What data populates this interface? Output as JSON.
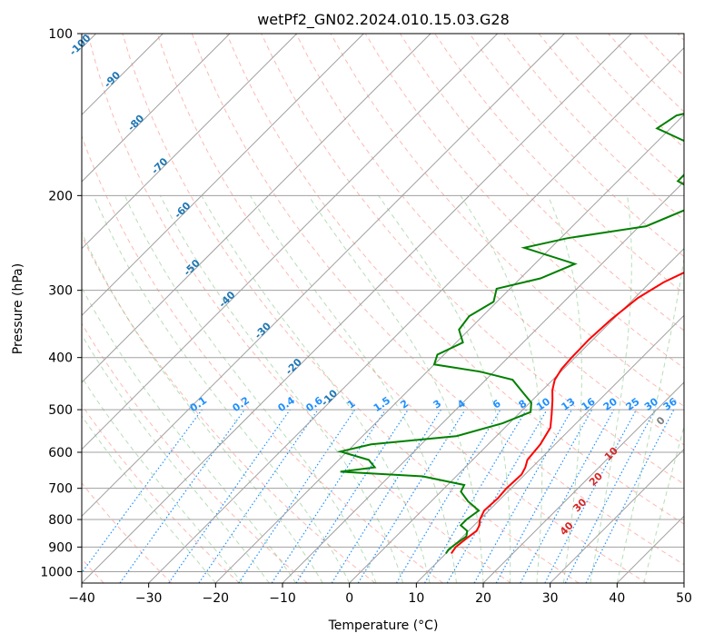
{
  "chart_data": {
    "type": "line",
    "title": "wetPf2_GN02.2024.010.15.03.G28",
    "xlabel": "Temperature (°C)",
    "ylabel": "Pressure (hPa)",
    "xlim": [
      -40,
      50
    ],
    "ylim": [
      1050,
      100
    ],
    "y_scale": "log",
    "grid": true,
    "x_ticks": [
      -40,
      -30,
      -20,
      -10,
      0,
      10,
      20,
      30,
      40,
      50
    ],
    "y_ticks": [
      100,
      200,
      300,
      400,
      500,
      600,
      700,
      800,
      900,
      1000
    ],
    "series": [
      {
        "color": "#ff0000",
        "values": [
          {
            "p": 925,
            "t": 10.8
          },
          {
            "p": 900,
            "t": 10.5
          },
          {
            "p": 870,
            "t": 10.8
          },
          {
            "p": 840,
            "t": 11.2
          },
          {
            "p": 820,
            "t": 10.8
          },
          {
            "p": 800,
            "t": 10.0
          },
          {
            "p": 770,
            "t": 9.3
          },
          {
            "p": 730,
            "t": 9.5
          },
          {
            "p": 700,
            "t": 9.3
          },
          {
            "p": 660,
            "t": 9.5
          },
          {
            "p": 640,
            "t": 9.0
          },
          {
            "p": 620,
            "t": 8.2
          },
          {
            "p": 580,
            "t": 7.8
          },
          {
            "p": 540,
            "t": 6.8
          },
          {
            "p": 510,
            "t": 5.0
          },
          {
            "p": 480,
            "t": 3.0
          },
          {
            "p": 460,
            "t": 1.5
          },
          {
            "p": 440,
            "t": 0.3
          },
          {
            "p": 420,
            "t": -0.3
          },
          {
            "p": 400,
            "t": -0.5
          },
          {
            "p": 370,
            "t": -0.6
          },
          {
            "p": 340,
            "t": -0.3
          },
          {
            "p": 310,
            "t": 0.5
          },
          {
            "p": 290,
            "t": 2.0
          },
          {
            "p": 275,
            "t": 4.0
          },
          {
            "p": 262,
            "t": 7.0
          },
          {
            "p": 250,
            "t": 9.5
          },
          {
            "p": 235,
            "t": 12.0
          },
          {
            "p": 220,
            "t": 14.5
          },
          {
            "p": 200,
            "t": 16.5
          },
          {
            "p": 180,
            "t": 18.5
          },
          {
            "p": 160,
            "t": 20.5
          },
          {
            "p": 145,
            "t": 22.0
          },
          {
            "p": 135,
            "t": 22.3
          },
          {
            "p": 125,
            "t": 22.2
          },
          {
            "p": 117,
            "t": 23.0
          },
          {
            "p": 110,
            "t": 24.0
          },
          {
            "p": 100,
            "t": 25.0
          }
        ]
      },
      {
        "color": "#008000",
        "values": [
          {
            "p": 925,
            "t": 10.0
          },
          {
            "p": 910,
            "t": 9.8
          },
          {
            "p": 890,
            "t": 10.0
          },
          {
            "p": 860,
            "t": 10.5
          },
          {
            "p": 840,
            "t": 9.8
          },
          {
            "p": 820,
            "t": 8.0
          },
          {
            "p": 800,
            "t": 8.0
          },
          {
            "p": 770,
            "t": 8.5
          },
          {
            "p": 740,
            "t": 5.5
          },
          {
            "p": 710,
            "t": 3.0
          },
          {
            "p": 690,
            "t": 2.5
          },
          {
            "p": 665,
            "t": -5.0
          },
          {
            "p": 652,
            "t": -18.0
          },
          {
            "p": 640,
            "t": -13.5
          },
          {
            "p": 620,
            "t": -15.5
          },
          {
            "p": 598,
            "t": -21.0
          },
          {
            "p": 580,
            "t": -17.5
          },
          {
            "p": 560,
            "t": -6.0
          },
          {
            "p": 530,
            "t": -1.0
          },
          {
            "p": 505,
            "t": 1.5
          },
          {
            "p": 485,
            "t": 0.2
          },
          {
            "p": 465,
            "t": -2.5
          },
          {
            "p": 440,
            "t": -6.0
          },
          {
            "p": 425,
            "t": -12.0
          },
          {
            "p": 412,
            "t": -20.0
          },
          {
            "p": 395,
            "t": -21.0
          },
          {
            "p": 375,
            "t": -19.0
          },
          {
            "p": 355,
            "t": -21.5
          },
          {
            "p": 335,
            "t": -22.0
          },
          {
            "p": 315,
            "t": -20.5
          },
          {
            "p": 298,
            "t": -22.0
          },
          {
            "p": 285,
            "t": -17.0
          },
          {
            "p": 268,
            "t": -14.0
          },
          {
            "p": 250,
            "t": -24.0
          },
          {
            "p": 240,
            "t": -19.0
          },
          {
            "p": 228,
            "t": -9.0
          },
          {
            "p": 210,
            "t": -5.0
          },
          {
            "p": 196,
            "t": -7.0
          },
          {
            "p": 188,
            "t": -11.0
          },
          {
            "p": 175,
            "t": -11.0
          },
          {
            "p": 162,
            "t": -13.5
          },
          {
            "p": 150,
            "t": -22.0
          },
          {
            "p": 142,
            "t": -21.0
          },
          {
            "p": 130,
            "t": -11.5
          },
          {
            "p": 118,
            "t": -6.0
          },
          {
            "p": 110,
            "t": -4.0
          },
          {
            "p": 100,
            "t": -2.0
          }
        ]
      }
    ],
    "mixing_ratio_labels": [
      "0.1",
      "0.2",
      "0.4",
      "0.6",
      "1",
      "1.5",
      "2",
      "3",
      "4",
      "6",
      "8",
      "10",
      "13",
      "16",
      "20",
      "25",
      "30",
      "36"
    ],
    "dry_adiabat_labels": [
      "-100",
      "-90",
      "-80",
      "-70",
      "-60",
      "-50",
      "-40",
      "-30",
      "-20",
      "-10"
    ],
    "moist_adiabat_labels": [
      "0",
      "10",
      "20",
      "30",
      "40"
    ]
  },
  "colors": {
    "temperature": "#ff0000",
    "dewpoint": "#008000",
    "dry_adiabat": "#fa8072",
    "moist_adiabat": "#5fb35f",
    "mixing_ratio": "#1e90ff",
    "isotherm": "#a0a0a0",
    "dry_label": "#1f77b4",
    "moist_label_warm": "#d62728",
    "moist_label_zero": "#808080"
  }
}
